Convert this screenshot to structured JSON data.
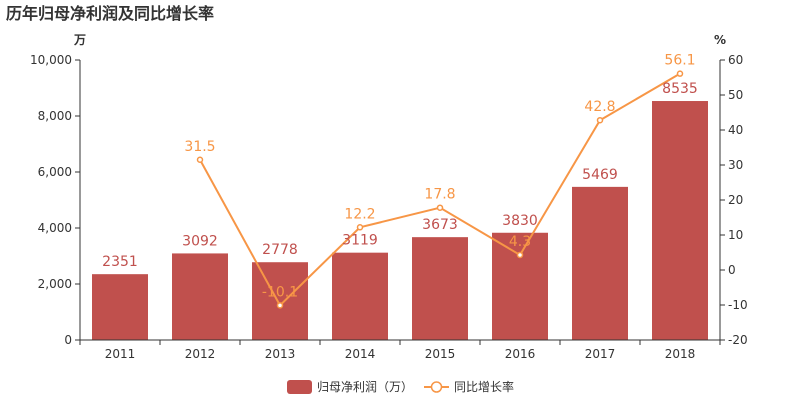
{
  "chart_data": {
    "type": "bar",
    "title": "历年归母净利润及同比增长率",
    "categories": [
      "2011",
      "2012",
      "2013",
      "2014",
      "2015",
      "2016",
      "2017",
      "2018"
    ],
    "series": [
      {
        "name": "归母净利润（万）",
        "type": "bar",
        "axis": "left",
        "values": [
          2351,
          3092,
          2778,
          3119,
          3673,
          3830,
          5469,
          8535
        ],
        "color": "#c0504d"
      },
      {
        "name": "同比增长率",
        "type": "line",
        "axis": "right",
        "values": [
          null,
          31.5,
          -10.1,
          12.2,
          17.8,
          4.3,
          42.8,
          56.1
        ],
        "color": "#f79646"
      }
    ],
    "y_left": {
      "unit": "万",
      "ylim": [
        0,
        10000
      ],
      "ticks": [
        "0",
        "2,000",
        "4,000",
        "6,000",
        "8,000",
        "10,000"
      ],
      "tick_values": [
        0,
        2000,
        4000,
        6000,
        8000,
        10000
      ]
    },
    "y_right": {
      "unit": "%",
      "ylim": [
        -20,
        60
      ],
      "ticks": [
        "-20",
        "-10",
        "0",
        "10",
        "20",
        "30",
        "40",
        "50",
        "60"
      ],
      "tick_values": [
        -20,
        -10,
        0,
        10,
        20,
        30,
        40,
        50,
        60
      ]
    },
    "grid": false,
    "legend": "bottom-center"
  }
}
